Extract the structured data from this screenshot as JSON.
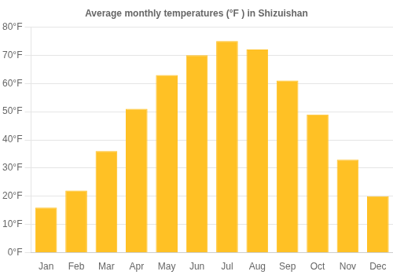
{
  "chart_data": {
    "type": "bar",
    "title": "Average monthly temperatures (°F ) in Shizuishan",
    "categories": [
      "Jan",
      "Feb",
      "Mar",
      "Apr",
      "May",
      "Jun",
      "Jul",
      "Aug",
      "Sep",
      "Oct",
      "Nov",
      "Dec"
    ],
    "values": [
      16,
      22,
      36,
      51,
      63,
      70,
      75,
      72,
      61,
      49,
      33,
      20
    ],
    "color": "#FFC125",
    "ylim": [
      0,
      80
    ],
    "yticks": [
      {
        "value": 0,
        "label": "0°F"
      },
      {
        "value": 10,
        "label": "10°F"
      },
      {
        "value": 20,
        "label": "20°F"
      },
      {
        "value": 30,
        "label": "30°F"
      },
      {
        "value": 40,
        "label": "40°F"
      },
      {
        "value": 50,
        "label": "50°F"
      },
      {
        "value": 60,
        "label": "60°F"
      },
      {
        "value": 70,
        "label": "70°F"
      },
      {
        "value": 80,
        "label": "80°F"
      }
    ],
    "grid": true
  }
}
